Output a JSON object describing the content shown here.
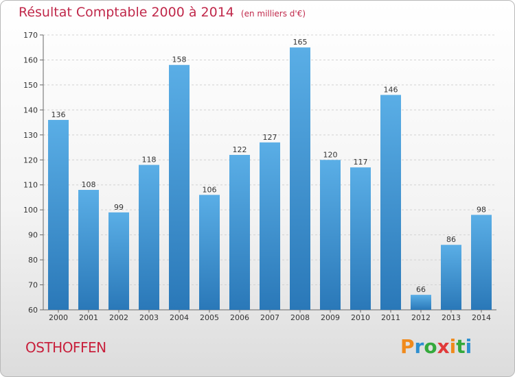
{
  "title": "Résultat Comptable 2000 à 2014",
  "subtitle": "(en milliers d'€)",
  "commune": "OSTHOFFEN",
  "brand": {
    "letters": [
      "P",
      "r",
      "o",
      "x",
      "i",
      "t",
      "i"
    ],
    "colors": [
      "#f08a1c",
      "#2e8fd0",
      "#34a93c",
      "#e13a3a",
      "#f08a1c",
      "#34a93c",
      "#2e8fd0"
    ]
  },
  "chart_data": {
    "type": "bar",
    "categories": [
      "2000",
      "2001",
      "2002",
      "2003",
      "2004",
      "2005",
      "2006",
      "2007",
      "2008",
      "2009",
      "2010",
      "2011",
      "2012",
      "2013",
      "2014"
    ],
    "values": [
      136,
      108,
      99,
      118,
      158,
      106,
      122,
      127,
      165,
      120,
      117,
      146,
      66,
      86,
      98
    ],
    "ylim": [
      60,
      170
    ],
    "yticks": [
      60,
      70,
      80,
      90,
      100,
      110,
      120,
      130,
      140,
      150,
      160,
      170
    ],
    "grid": true,
    "bar_color": "#3d96d8"
  }
}
